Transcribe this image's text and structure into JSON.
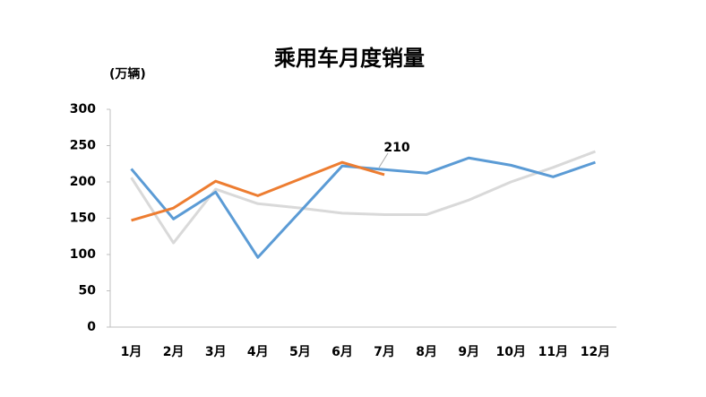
{
  "chart_data": {
    "type": "line",
    "title": "乘用车月度销量",
    "y_label": "(万辆)",
    "categories": [
      "1月",
      "2月",
      "3月",
      "4月",
      "5月",
      "6月",
      "7月",
      "8月",
      "9月",
      "10月",
      "11月",
      "12月"
    ],
    "series": [
      {
        "color": "#d9d9d9",
        "values": [
          206,
          116,
          190,
          170,
          164,
          157,
          155,
          155,
          175,
          200,
          220,
          242
        ]
      },
      {
        "color": "#5b9bd5",
        "values": [
          218,
          149,
          186,
          96,
          159,
          222,
          217,
          212,
          233,
          223,
          207,
          227
        ]
      },
      {
        "color": "#ed7d31",
        "values": [
          147,
          164,
          201,
          181,
          204,
          227,
          210,
          null,
          null,
          null,
          null,
          null
        ]
      }
    ],
    "annotation": {
      "series": 2,
      "index": 6
    },
    "ylim": [
      0,
      300
    ],
    "yticks": [
      0,
      50,
      100,
      150,
      200,
      250,
      300
    ],
    "grid": false
  }
}
